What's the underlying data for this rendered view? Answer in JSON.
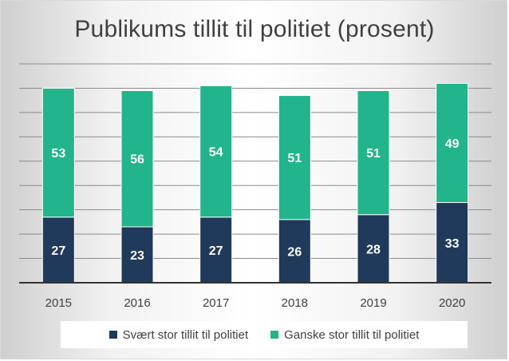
{
  "colors": {
    "series1": "#1f3a5a",
    "series2": "#22b48b",
    "gridline": "#8a8a8a",
    "axis": "#333333"
  },
  "chart_data": {
    "type": "bar",
    "stacked": true,
    "title": "Publikums tillit til politiet (prosent)",
    "categories": [
      "2015",
      "2016",
      "2017",
      "2018",
      "2019",
      "2020"
    ],
    "series": [
      {
        "name": "Svært stor tillit til politiet",
        "values": [
          27,
          23,
          27,
          26,
          28,
          33
        ]
      },
      {
        "name": "Ganske stor tillit til politiet",
        "values": [
          53,
          56,
          54,
          51,
          51,
          49
        ]
      }
    ],
    "ylim": [
      0,
      90
    ],
    "grid": true,
    "legend": "bottom"
  }
}
